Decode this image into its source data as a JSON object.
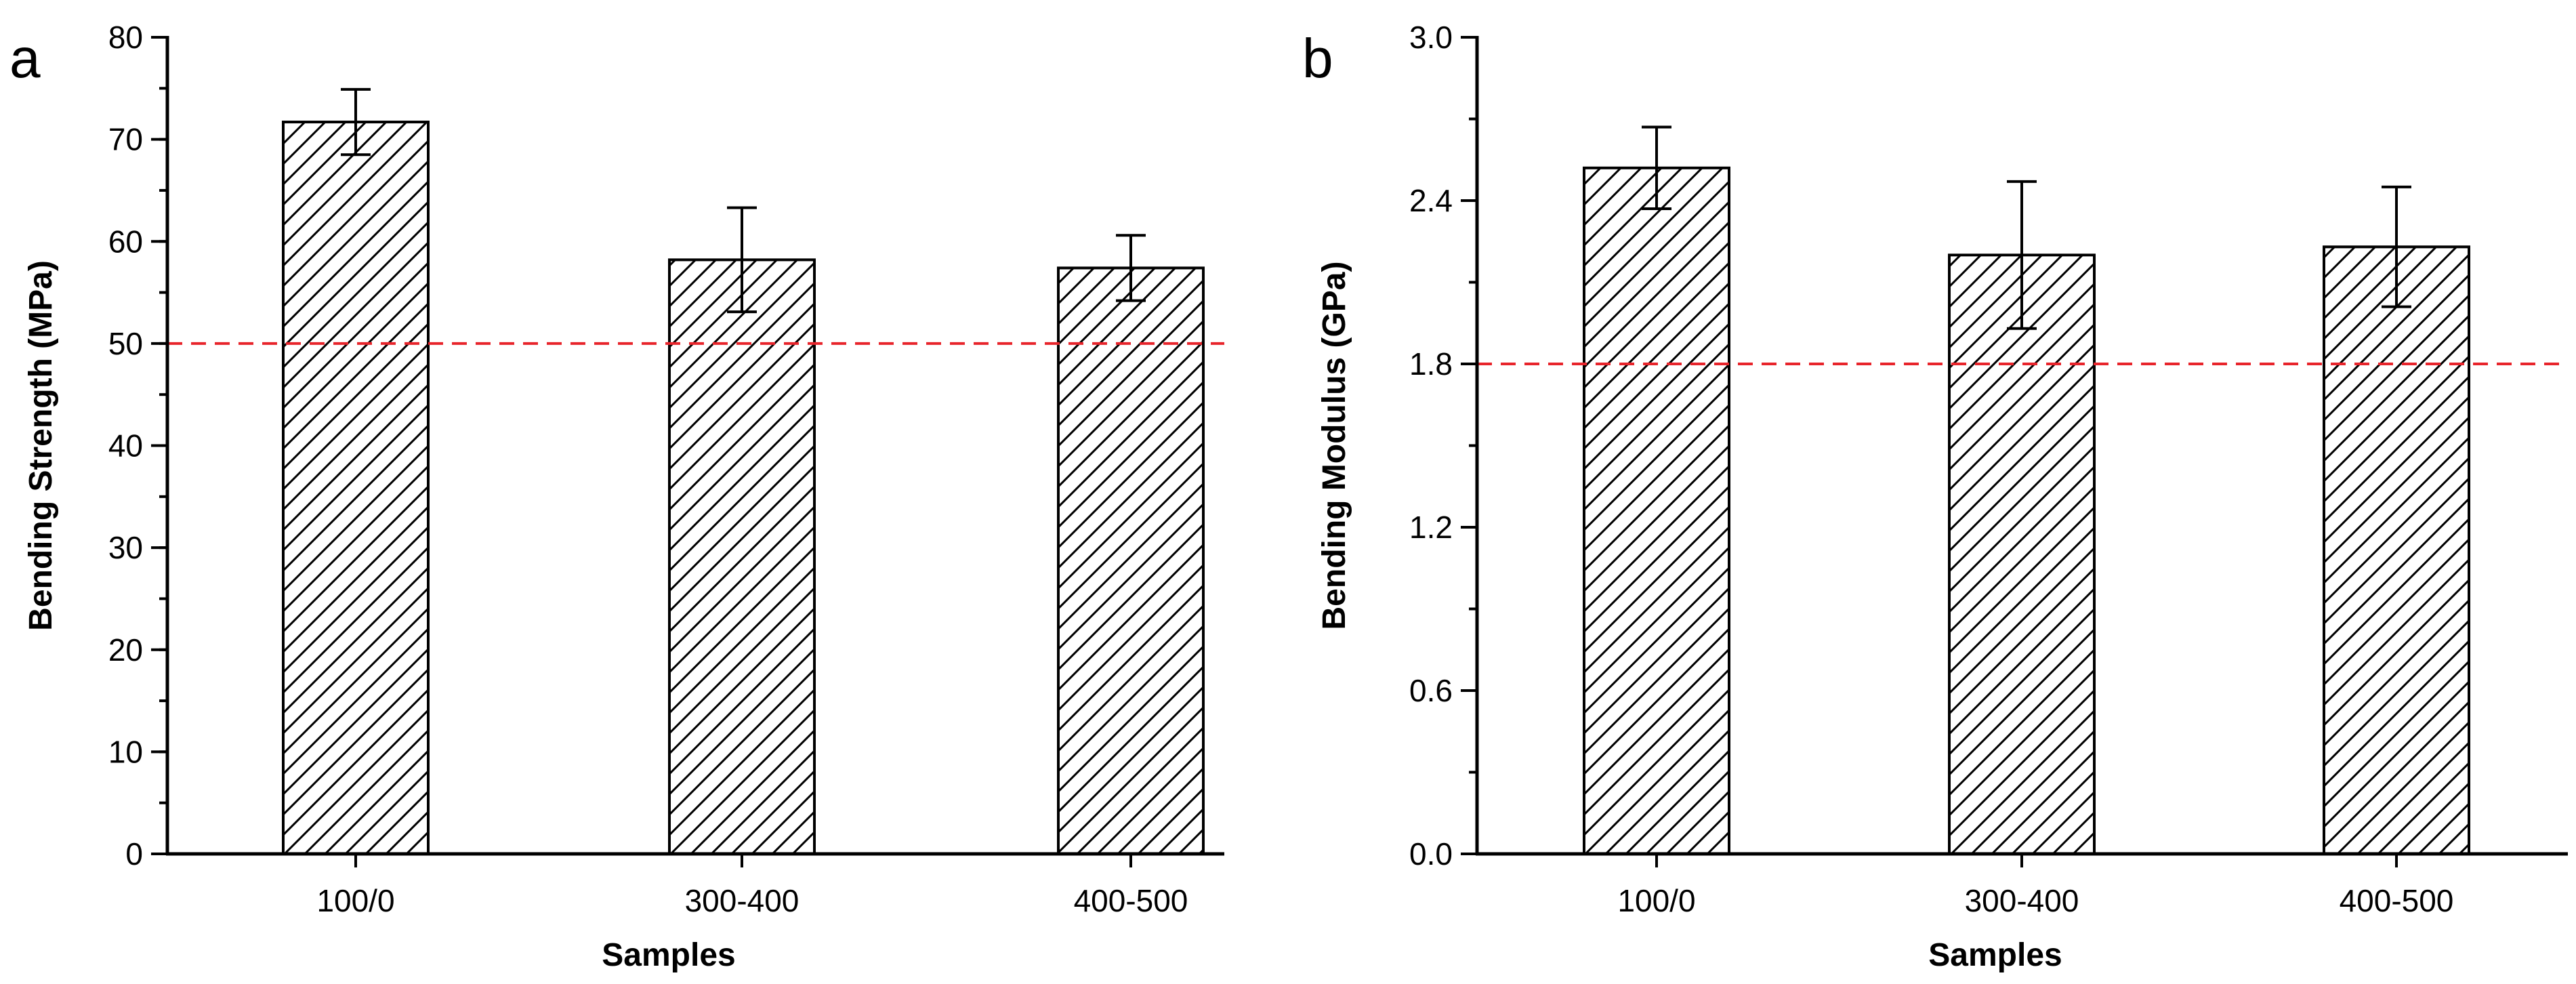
{
  "chart_data": [
    {
      "type": "bar",
      "panel_label": "a",
      "categories": [
        "100/0",
        "300-400",
        "400-500"
      ],
      "values": [
        71.7,
        58.2,
        57.4
      ],
      "errors": [
        3.2,
        5.1,
        3.2
      ],
      "reference_line": 50,
      "xlabel": "Samples",
      "ylabel": "Bending Strength (MPa)",
      "ylim": [
        0,
        80
      ],
      "yticks": [
        "0",
        "10",
        "20",
        "30",
        "40",
        "50",
        "60",
        "70",
        "80"
      ],
      "yticks_values": [
        0,
        10,
        20,
        30,
        40,
        50,
        60,
        70,
        80
      ],
      "minor_step": 5,
      "bar_pattern": "diagonal-hatch",
      "reference_color": "#e8242b"
    },
    {
      "type": "bar",
      "panel_label": "b",
      "categories": [
        "100/0",
        "300-400",
        "400-500"
      ],
      "values": [
        2.52,
        2.2,
        2.23
      ],
      "errors": [
        0.15,
        0.27,
        0.22
      ],
      "reference_line": 1.8,
      "xlabel": "Samples",
      "ylabel": "Bending Modulus (GPa)",
      "ylim": [
        0,
        3.0
      ],
      "yticks": [
        "0.0",
        "0.6",
        "1.2",
        "1.8",
        "2.4",
        "3.0"
      ],
      "yticks_values": [
        0,
        0.6,
        1.2,
        1.8,
        2.4,
        3.0
      ],
      "minor_step": 0.3,
      "bar_pattern": "diagonal-hatch",
      "reference_color": "#e8242b"
    }
  ]
}
